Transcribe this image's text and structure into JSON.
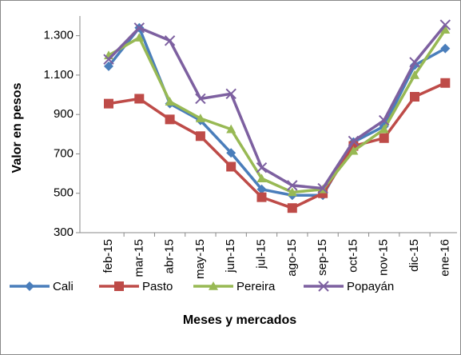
{
  "chart_data": {
    "type": "line",
    "x_label": "Meses y mercados",
    "y_label": "Valor en pesos",
    "categories": [
      "feb-15",
      "mar-15",
      "abr-15",
      "may-15",
      "jun-15",
      "jul-15",
      "ago-15",
      "sep-15",
      "oct-15",
      "nov-15",
      "dic-15",
      "ene-16"
    ],
    "series": [
      {
        "name": "Cali",
        "color": "#4a7ebb",
        "marker": "diamond",
        "values": [
          1145,
          1340,
          955,
          870,
          705,
          520,
          490,
          490,
          760,
          840,
          1150,
          1235
        ]
      },
      {
        "name": "Pasto",
        "color": "#be4b48",
        "marker": "square",
        "values": [
          955,
          980,
          875,
          790,
          635,
          480,
          425,
          500,
          740,
          780,
          990,
          1060
        ]
      },
      {
        "name": "Pereira",
        "color": "#98b954",
        "marker": "triangle",
        "values": [
          1200,
          1290,
          965,
          880,
          825,
          575,
          505,
          520,
          715,
          825,
          1100,
          1330
        ]
      },
      {
        "name": "Popayán",
        "color": "#7d60a0",
        "marker": "x",
        "values": [
          1180,
          1340,
          1275,
          980,
          1005,
          630,
          540,
          525,
          765,
          870,
          1165,
          1355
        ]
      }
    ],
    "ylim": [
      300,
      1400
    ],
    "yticks": [
      300,
      500,
      700,
      900,
      {
        "value": 1100,
        "label": "1.100"
      },
      {
        "value": 1300,
        "label": "1.300"
      }
    ],
    "grid": false,
    "legend": "bottom"
  }
}
